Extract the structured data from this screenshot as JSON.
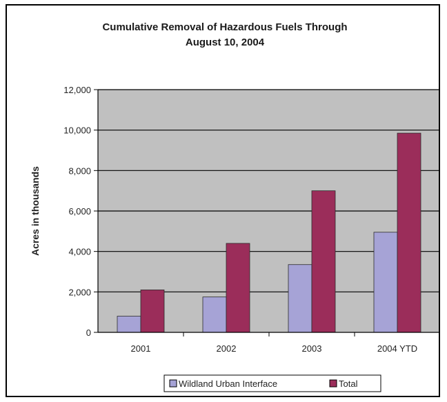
{
  "chart_data": {
    "type": "bar",
    "title_lines": [
      "Cumulative Removal of Hazardous Fuels Through",
      "August 10, 2004"
    ],
    "xlabel": "",
    "ylabel": "Acres in thousands",
    "categories": [
      "2001",
      "2002",
      "2003",
      "2004 YTD"
    ],
    "series": [
      {
        "name": "Wildland Urban Interface",
        "values": [
          800,
          1750,
          3350,
          4950
        ],
        "color": "#a6a3d6"
      },
      {
        "name": "Total",
        "values": [
          2100,
          4400,
          7000,
          9850
        ],
        "color": "#9b2d5a"
      }
    ],
    "ylim": [
      0,
      12000
    ],
    "yticks": [
      "0",
      "2,000",
      "4,000",
      "6,000",
      "8,000",
      "10,000",
      "12,000"
    ],
    "grid": true,
    "plot_background": "#c0c0c0",
    "legend": "bottom"
  }
}
